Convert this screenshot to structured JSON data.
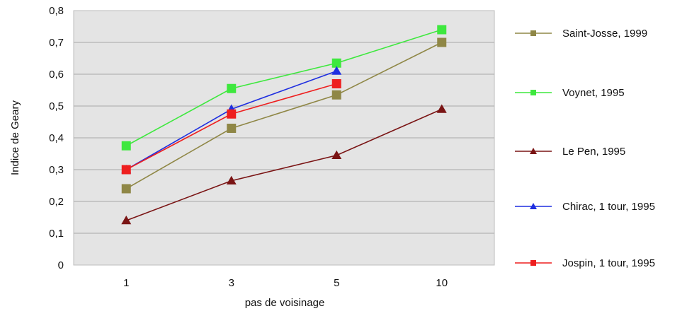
{
  "chart_data": {
    "type": "line",
    "title": "",
    "xlabel": "pas de voisinage",
    "ylabel": "Indice de Geary",
    "categories": [
      "1",
      "3",
      "5",
      "10"
    ],
    "ylim": [
      0,
      0.8
    ],
    "yticks": [
      "0",
      "0,1",
      "0,2",
      "0,3",
      "0,4",
      "0,5",
      "0,6",
      "0,7",
      "0,8"
    ],
    "grid": true,
    "plot_background": "#e4e4e4",
    "legend_position": "right",
    "series": [
      {
        "name": "Saint-Josse, 1999",
        "color": "#8f8746",
        "marker": "square",
        "values": [
          0.24,
          0.43,
          0.535,
          0.7
        ]
      },
      {
        "name": "Voynet, 1995",
        "color": "#3ee83e",
        "marker": "square",
        "values": [
          0.375,
          0.555,
          0.635,
          0.74
        ]
      },
      {
        "name": "Le Pen, 1995",
        "color": "#7a1414",
        "marker": "triangle",
        "values": [
          0.14,
          0.265,
          0.345,
          0.49
        ]
      },
      {
        "name": "Chirac, 1 tour, 1995",
        "color": "#1f2fe0",
        "marker": "triangle",
        "values": [
          0.3,
          0.49,
          0.61,
          null
        ]
      },
      {
        "name": "Jospin, 1 tour, 1995",
        "color": "#ee1f1f",
        "marker": "square",
        "values": [
          0.3,
          0.475,
          0.57,
          null
        ]
      }
    ]
  }
}
